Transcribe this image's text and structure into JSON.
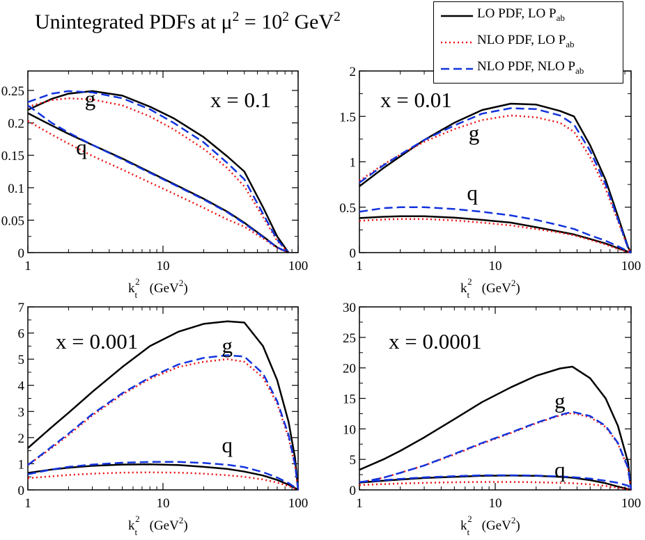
{
  "title": {
    "prefix": "Unintegrated PDFs at",
    "mu": "μ",
    "exp1": "2",
    "eq": " = 10",
    "exp2": "2",
    "unit": " GeV",
    "exp3": "2"
  },
  "legend": [
    {
      "label": "LO PDF, LO P",
      "sub": "ab",
      "color": "#000000",
      "dash": "solid"
    },
    {
      "label": "NLO PDF, LO P",
      "sub": "ab",
      "color": "#ee1111",
      "dash": "dotted"
    },
    {
      "label": "NLO PDF, NLO P",
      "sub": "ab",
      "color": "#1133dd",
      "dash": "dashed"
    }
  ],
  "chart_data": [
    {
      "type": "line",
      "panel": "top-left",
      "x_annotation": "x = 0.1",
      "xlabel": "k_t^2 (GeV^2)",
      "xscale": "log",
      "xlim": [
        1,
        100
      ],
      "ylim": [
        0,
        0.28
      ],
      "yticks": [
        0,
        0.05,
        0.1,
        0.15,
        0.2,
        0.25
      ],
      "ytick_labels": [
        "0",
        "0.05",
        "0.1",
        "0.15",
        "0.2",
        "0.25"
      ],
      "xtick_labels": [
        "1",
        "10",
        "100"
      ],
      "curve_labels": [
        {
          "text": "g",
          "x": 2.9,
          "y": 0.235
        },
        {
          "text": "q",
          "x": 2.5,
          "y": 0.16
        }
      ],
      "x": [
        1,
        1.5,
        2,
        3,
        5,
        8,
        12,
        20,
        30,
        40,
        55,
        70,
        85
      ],
      "series": [
        {
          "name": "g LO PDF, LO P_ab",
          "values": [
            0.22,
            0.237,
            0.245,
            0.249,
            0.242,
            0.225,
            0.207,
            0.178,
            0.148,
            0.125,
            0.07,
            0.025,
            0.0
          ]
        },
        {
          "name": "g NLO PDF, LO P_ab",
          "values": [
            0.225,
            0.235,
            0.238,
            0.236,
            0.227,
            0.21,
            0.19,
            0.16,
            0.13,
            0.102,
            0.055,
            0.018,
            0.0
          ]
        },
        {
          "name": "g NLO PDF, NLO P_ab",
          "values": [
            0.232,
            0.245,
            0.249,
            0.247,
            0.238,
            0.221,
            0.2,
            0.17,
            0.138,
            0.113,
            0.06,
            0.02,
            0.0
          ]
        },
        {
          "name": "q LO PDF, LO P_ab",
          "values": [
            0.215,
            0.196,
            0.183,
            0.166,
            0.145,
            0.124,
            0.106,
            0.083,
            0.063,
            0.046,
            0.025,
            0.008,
            0.0
          ]
        },
        {
          "name": "q NLO PDF, LO P_ab",
          "values": [
            0.203,
            0.182,
            0.168,
            0.149,
            0.128,
            0.108,
            0.091,
            0.069,
            0.051,
            0.04,
            0.022,
            0.007,
            0.0
          ]
        },
        {
          "name": "q NLO PDF, NLO P_ab",
          "values": [
            0.227,
            0.2,
            0.185,
            0.166,
            0.144,
            0.123,
            0.105,
            0.082,
            0.062,
            0.045,
            0.024,
            0.008,
            0.0
          ]
        }
      ]
    },
    {
      "type": "line",
      "panel": "top-right",
      "x_annotation": "x = 0.01",
      "xlabel": "k_t^2 (GeV^2)",
      "xscale": "log",
      "xlim": [
        1,
        100
      ],
      "ylim": [
        0,
        2
      ],
      "yticks": [
        0,
        0.5,
        1,
        1.5,
        2
      ],
      "ytick_labels": [
        "0",
        "0.5",
        "1",
        "1.5",
        "2"
      ],
      "xtick_labels": [
        "1",
        "10",
        "100"
      ],
      "curve_labels": [
        {
          "text": "g",
          "x": 7,
          "y": 1.3
        },
        {
          "text": "q",
          "x": 6.8,
          "y": 0.64
        }
      ],
      "x": [
        1,
        1.5,
        2,
        3,
        5,
        8,
        13,
        20,
        30,
        38,
        50,
        65,
        80,
        95,
        100
      ],
      "series": [
        {
          "name": "g LO PDF, LO P_ab",
          "values": [
            0.73,
            0.93,
            1.06,
            1.24,
            1.43,
            1.57,
            1.64,
            1.63,
            1.56,
            1.5,
            1.18,
            0.8,
            0.4,
            0.06,
            0.0
          ]
        },
        {
          "name": "g NLO PDF, LO P_ab",
          "values": [
            0.79,
            0.97,
            1.08,
            1.22,
            1.36,
            1.46,
            1.51,
            1.49,
            1.43,
            1.33,
            1.05,
            0.7,
            0.35,
            0.05,
            0.0
          ]
        },
        {
          "name": "g NLO PDF, NLO P_ab",
          "values": [
            0.77,
            0.96,
            1.08,
            1.24,
            1.4,
            1.53,
            1.59,
            1.58,
            1.51,
            1.41,
            1.12,
            0.75,
            0.37,
            0.05,
            0.0
          ]
        },
        {
          "name": "q LO PDF, LO P_ab",
          "values": [
            0.38,
            0.395,
            0.4,
            0.4,
            0.385,
            0.36,
            0.33,
            0.28,
            0.23,
            0.2,
            0.15,
            0.1,
            0.05,
            0.01,
            0.0
          ]
        },
        {
          "name": "q NLO PDF, LO P_ab",
          "values": [
            0.35,
            0.365,
            0.37,
            0.37,
            0.355,
            0.33,
            0.3,
            0.26,
            0.22,
            0.19,
            0.14,
            0.09,
            0.04,
            0.008,
            0.0
          ]
        },
        {
          "name": "q NLO PDF, NLO P_ab",
          "values": [
            0.45,
            0.49,
            0.5,
            0.5,
            0.48,
            0.45,
            0.41,
            0.36,
            0.3,
            0.26,
            0.19,
            0.13,
            0.07,
            0.015,
            0.0
          ]
        }
      ]
    },
    {
      "type": "line",
      "panel": "bottom-left",
      "x_annotation": "x = 0.001",
      "xlabel": "k_t^2 (GeV^2)",
      "xscale": "log",
      "xlim": [
        1,
        100
      ],
      "ylim": [
        0,
        7
      ],
      "yticks": [
        0,
        1,
        2,
        3,
        4,
        5,
        6,
        7
      ],
      "ytick_labels": [
        "0",
        "1",
        "2",
        "3",
        "4",
        "5",
        "6",
        "7"
      ],
      "xtick_labels": [
        "1",
        "10",
        "100"
      ],
      "curve_labels": [
        {
          "text": "g",
          "x": 30,
          "y": 5.45
        },
        {
          "text": "q",
          "x": 30,
          "y": 1.65
        }
      ],
      "x": [
        1,
        1.5,
        2,
        3,
        5,
        8,
        13,
        20,
        30,
        40,
        55,
        70,
        85,
        95,
        100
      ],
      "series": [
        {
          "name": "g LO PDF, LO P_ab",
          "values": [
            1.6,
            2.4,
            2.95,
            3.75,
            4.7,
            5.5,
            6.05,
            6.35,
            6.45,
            6.4,
            5.5,
            4.2,
            2.6,
            1.2,
            0.0
          ]
        },
        {
          "name": "g NLO PDF, LO P_ab",
          "values": [
            0.95,
            1.6,
            2.1,
            2.85,
            3.65,
            4.25,
            4.7,
            4.9,
            5.0,
            4.9,
            4.3,
            3.3,
            2.0,
            0.9,
            0.0
          ]
        },
        {
          "name": "g NLO PDF, NLO P_ab",
          "values": [
            0.95,
            1.65,
            2.15,
            2.9,
            3.7,
            4.3,
            4.8,
            5.05,
            5.15,
            5.1,
            4.45,
            3.4,
            2.1,
            0.95,
            0.0
          ]
        },
        {
          "name": "q LO PDF, LO P_ab",
          "values": [
            0.65,
            0.78,
            0.85,
            0.92,
            0.97,
            0.98,
            0.95,
            0.88,
            0.8,
            0.7,
            0.55,
            0.38,
            0.2,
            0.07,
            0.0
          ]
        },
        {
          "name": "q NLO PDF, LO P_ab",
          "values": [
            0.45,
            0.52,
            0.57,
            0.62,
            0.66,
            0.67,
            0.66,
            0.62,
            0.56,
            0.5,
            0.4,
            0.28,
            0.15,
            0.05,
            0.0
          ]
        },
        {
          "name": "q NLO PDF, NLO P_ab",
          "values": [
            0.6,
            0.78,
            0.88,
            0.97,
            1.04,
            1.07,
            1.07,
            1.03,
            0.96,
            0.87,
            0.68,
            0.47,
            0.26,
            0.09,
            0.0
          ]
        }
      ]
    },
    {
      "type": "line",
      "panel": "bottom-right",
      "x_annotation": "x = 0.0001",
      "xlabel": "k_t^2 (GeV^2)",
      "xscale": "log",
      "xlim": [
        1,
        100
      ],
      "ylim": [
        0,
        30
      ],
      "yticks": [
        0,
        5,
        10,
        15,
        20,
        25,
        30
      ],
      "ytick_labels": [
        "0",
        "5",
        "10",
        "15",
        "20",
        "25",
        "30"
      ],
      "xtick_labels": [
        "1",
        "10",
        "100"
      ],
      "curve_labels": [
        {
          "text": "g",
          "x": 30,
          "y": 14.3
        },
        {
          "text": "q",
          "x": 30,
          "y": 3.0
        }
      ],
      "x": [
        1,
        1.5,
        2,
        3,
        5,
        8,
        13,
        20,
        30,
        37,
        50,
        65,
        80,
        95,
        100
      ],
      "series": [
        {
          "name": "g LO PDF, LO P_ab",
          "values": [
            3.3,
            5.0,
            6.4,
            8.6,
            11.6,
            14.4,
            16.8,
            18.7,
            19.9,
            20.2,
            18.3,
            15.0,
            10.5,
            4.5,
            0.0
          ]
        },
        {
          "name": "g NLO PDF, LO P_ab",
          "values": [
            1.2,
            2.0,
            2.8,
            4.0,
            5.8,
            7.6,
            9.3,
            10.9,
            12.2,
            12.6,
            11.9,
            10.3,
            7.6,
            3.5,
            0.0
          ]
        },
        {
          "name": "g NLO PDF, NLO P_ab",
          "values": [
            1.2,
            2.0,
            2.8,
            4.0,
            5.9,
            7.7,
            9.4,
            11.0,
            12.3,
            12.8,
            12.1,
            10.5,
            7.7,
            3.6,
            0.0
          ]
        },
        {
          "name": "q LO PDF, LO P_ab",
          "values": [
            1.2,
            1.5,
            1.7,
            1.95,
            2.15,
            2.3,
            2.35,
            2.3,
            2.15,
            2.0,
            1.6,
            1.1,
            0.55,
            0.15,
            0.0
          ]
        },
        {
          "name": "q NLO PDF, LO P_ab",
          "values": [
            0.8,
            0.95,
            1.05,
            1.15,
            1.25,
            1.3,
            1.3,
            1.25,
            1.15,
            1.1,
            0.9,
            0.65,
            0.35,
            0.1,
            0.0
          ]
        },
        {
          "name": "q NLO PDF, NLO P_ab",
          "values": [
            1.3,
            1.6,
            1.8,
            2.05,
            2.25,
            2.4,
            2.4,
            2.35,
            2.2,
            2.1,
            1.85,
            1.5,
            1.15,
            0.7,
            0.0
          ]
        }
      ]
    }
  ]
}
